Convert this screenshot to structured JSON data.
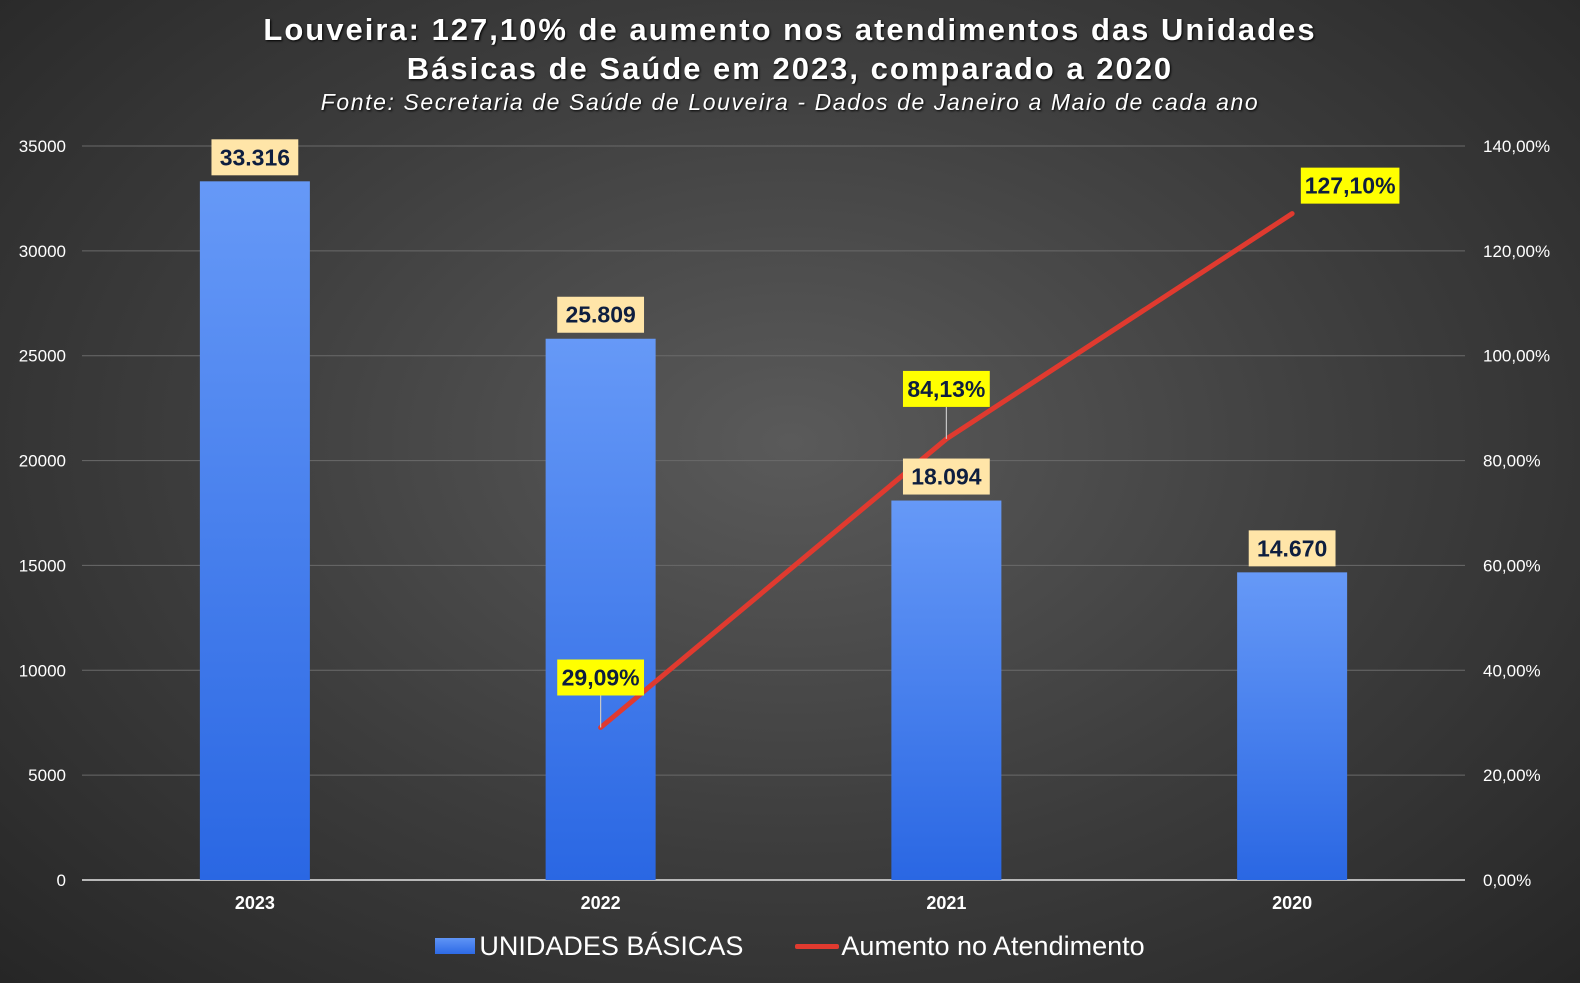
{
  "title": {
    "line1": "Louveira: 127,10% de aumento nos atendimentos das Unidades",
    "line2": "Básicas de Saúde em 2023, comparado a 2020",
    "subtitle": "Fonte: Secretaria de Saúde de Louveira - Dados de Janeiro a Maio de cada ano"
  },
  "legend": {
    "bars": "UNIDADES BÁSICAS",
    "line": "Aumento no Atendimento"
  },
  "colors": {
    "bar_top": "#6699f7",
    "bar_bottom": "#2a67e3",
    "line": "#e03a2f",
    "bar_label_bg": "#ffe5a8",
    "line_label_bg": "#ffff00"
  },
  "chart_data": {
    "type": "bar+line",
    "categories": [
      "2023",
      "2022",
      "2021",
      "2020"
    ],
    "series": [
      {
        "name": "UNIDADES BÁSICAS",
        "type": "bar",
        "axis": "left",
        "values": [
          33316,
          25809,
          18094,
          14670
        ],
        "labels": [
          "33.316",
          "25.809",
          "18.094",
          "14.670"
        ]
      },
      {
        "name": "Aumento no Atendimento",
        "type": "line",
        "axis": "right",
        "values": [
          null,
          29.09,
          84.13,
          127.1
        ],
        "labels": [
          "",
          "29,09%",
          "84,13%",
          "127,10%"
        ]
      }
    ],
    "y_left": {
      "min": 0,
      "max": 35000,
      "ticks": [
        "0",
        "5000",
        "10000",
        "15000",
        "20000",
        "25000",
        "30000",
        "35000"
      ]
    },
    "y_right": {
      "min": 0,
      "max": 140,
      "ticks": [
        "0,00%",
        "20,00%",
        "40,00%",
        "60,00%",
        "80,00%",
        "100,00%",
        "120,00%",
        "140,00%"
      ]
    },
    "grid": true,
    "legend_position": "bottom"
  }
}
